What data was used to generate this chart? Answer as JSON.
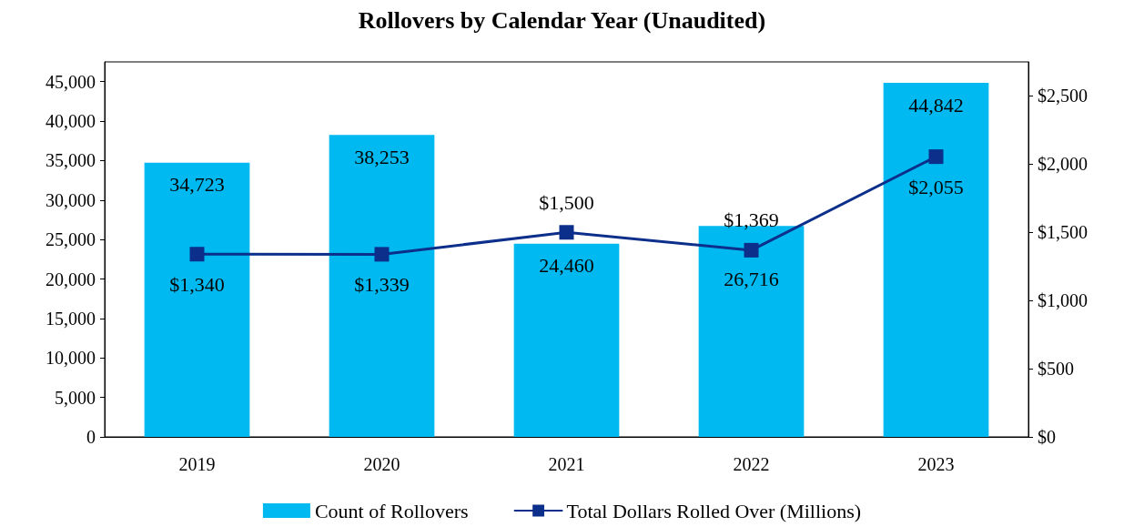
{
  "chart_data": {
    "type": "bar",
    "title": "Rollovers by Calendar Year (Unaudited)",
    "categories": [
      "2019",
      "2020",
      "2021",
      "2022",
      "2023"
    ],
    "series": [
      {
        "name": "Count of Rollovers",
        "color": "#00b9f1",
        "values": [
          34723,
          38253,
          24460,
          26716,
          44842
        ],
        "value_labels": [
          "34,723",
          "38,253",
          "24,460",
          "26,716",
          "44,842"
        ]
      },
      {
        "name": "Total Dollars Rolled Over (Millions)",
        "type": "line",
        "axis": "y2",
        "color": "#0b2f8a",
        "values": [
          1340,
          1339,
          1500,
          1369,
          2055
        ],
        "value_labels": [
          "$1,340",
          "$1,339",
          "$1,500",
          "$1,369",
          "$2,055"
        ]
      }
    ],
    "ylim": [
      0,
      47500
    ],
    "yticks": [
      {
        "value": 0,
        "label": "0"
      },
      {
        "value": 5000,
        "label": "5,000"
      },
      {
        "value": 10000,
        "label": "10,000"
      },
      {
        "value": 15000,
        "label": "15,000"
      },
      {
        "value": 20000,
        "label": "20,000"
      },
      {
        "value": 25000,
        "label": "25,000"
      },
      {
        "value": 30000,
        "label": "30,000"
      },
      {
        "value": 35000,
        "label": "35,000"
      },
      {
        "value": 40000,
        "label": "40,000"
      },
      {
        "value": 45000,
        "label": "45,000"
      }
    ],
    "y2lim": [
      0,
      2750
    ],
    "y2ticks": [
      {
        "value": 0,
        "label": "$0"
      },
      {
        "value": 500,
        "label": "$500"
      },
      {
        "value": 1000,
        "label": "$1,000"
      },
      {
        "value": 1500,
        "label": "$1,500"
      },
      {
        "value": 2000,
        "label": "$2,000"
      },
      {
        "value": 2500,
        "label": "$2,500"
      }
    ],
    "marker": "square",
    "line_style": "solid",
    "legend": "bottom"
  }
}
